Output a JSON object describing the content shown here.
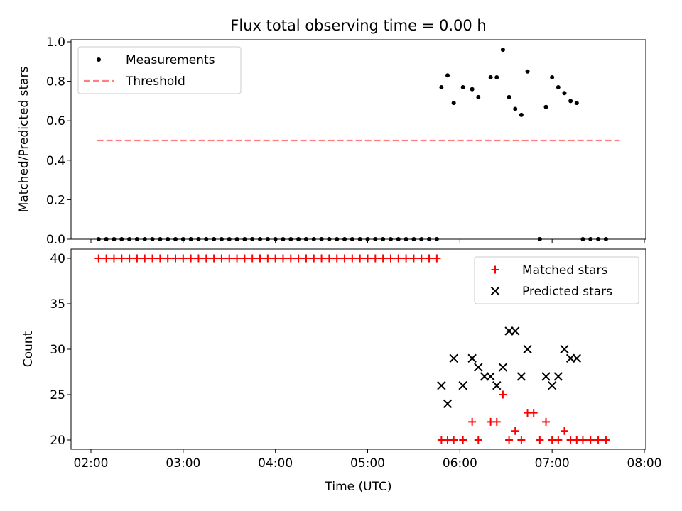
{
  "chart_data": [
    {
      "type": "scatter",
      "title": "Flux total observing time = 0.00 h",
      "xlabel": "",
      "ylabel": "Matched/Predicted stars",
      "xlim": [
        "02:00",
        "08:00"
      ],
      "ylim": [
        0,
        1.0
      ],
      "yticks": [
        0.0,
        0.2,
        0.4,
        0.6,
        0.8,
        1.0
      ],
      "ytick_labels": [
        "0.0",
        "0.2",
        "0.4",
        "0.6",
        "0.8",
        "1.0"
      ],
      "legend": {
        "placement": "top-left",
        "entries": [
          "Measurements",
          "Threshold"
        ]
      },
      "series": [
        {
          "name": "Measurements",
          "marker": "dot",
          "color": "#000000",
          "x": [
            "02:05",
            "02:10",
            "02:15",
            "02:20",
            "02:25",
            "02:30",
            "02:35",
            "02:40",
            "02:45",
            "02:50",
            "02:55",
            "03:00",
            "03:05",
            "03:10",
            "03:15",
            "03:20",
            "03:25",
            "03:30",
            "03:35",
            "03:40",
            "03:45",
            "03:50",
            "03:55",
            "04:00",
            "04:05",
            "04:10",
            "04:15",
            "04:20",
            "04:25",
            "04:30",
            "04:35",
            "04:40",
            "04:45",
            "04:50",
            "04:55",
            "05:00",
            "05:05",
            "05:10",
            "05:15",
            "05:20",
            "05:25",
            "05:30",
            "05:35",
            "05:40",
            "05:45",
            "05:48",
            "05:52",
            "05:56",
            "06:02",
            "06:08",
            "06:12",
            "06:20",
            "06:24",
            "06:28",
            "06:32",
            "06:36",
            "06:40",
            "06:44",
            "06:52",
            "06:56",
            "07:00",
            "07:04",
            "07:08",
            "07:12",
            "07:16",
            "07:20",
            "07:25",
            "07:30",
            "07:35"
          ],
          "y": [
            0,
            0,
            0,
            0,
            0,
            0,
            0,
            0,
            0,
            0,
            0,
            0,
            0,
            0,
            0,
            0,
            0,
            0,
            0,
            0,
            0,
            0,
            0,
            0,
            0,
            0,
            0,
            0,
            0,
            0,
            0,
            0,
            0,
            0,
            0,
            0,
            0,
            0,
            0,
            0,
            0,
            0,
            0,
            0,
            0,
            0.77,
            0.83,
            0.69,
            0.77,
            0.76,
            0.72,
            0.82,
            0.82,
            0.96,
            0.72,
            0.66,
            0.63,
            0.85,
            0,
            0.67,
            0.82,
            0.77,
            0.74,
            0.7,
            0.69,
            0,
            0,
            0,
            0
          ]
        },
        {
          "name": "Threshold",
          "style": "dashed",
          "color": "#ff7f7f",
          "x": [
            "02:04",
            "07:44"
          ],
          "y": [
            0.5,
            0.5
          ]
        }
      ]
    },
    {
      "type": "scatter",
      "title": "",
      "xlabel": "Time (UTC)",
      "ylabel": "Count",
      "xlim": [
        "02:00",
        "08:00"
      ],
      "xticks": [
        "02:00",
        "03:00",
        "04:00",
        "05:00",
        "06:00",
        "07:00",
        "08:00"
      ],
      "ylim": [
        20,
        40
      ],
      "yticks": [
        20,
        25,
        30,
        35,
        40
      ],
      "ytick_labels": [
        "20",
        "25",
        "30",
        "35",
        "40"
      ],
      "legend": {
        "placement": "top-right",
        "entries": [
          "Matched stars",
          "Predicted stars"
        ]
      },
      "series": [
        {
          "name": "Matched stars",
          "marker": "plus",
          "color": "#ff0000",
          "x": [
            "02:05",
            "02:10",
            "02:15",
            "02:20",
            "02:25",
            "02:30",
            "02:35",
            "02:40",
            "02:45",
            "02:50",
            "02:55",
            "03:00",
            "03:05",
            "03:10",
            "03:15",
            "03:20",
            "03:25",
            "03:30",
            "03:35",
            "03:40",
            "03:45",
            "03:50",
            "03:55",
            "04:00",
            "04:05",
            "04:10",
            "04:15",
            "04:20",
            "04:25",
            "04:30",
            "04:35",
            "04:40",
            "04:45",
            "04:50",
            "04:55",
            "05:00",
            "05:05",
            "05:10",
            "05:15",
            "05:20",
            "05:25",
            "05:30",
            "05:35",
            "05:40",
            "05:45",
            "05:48",
            "05:52",
            "05:56",
            "06:02",
            "06:08",
            "06:12",
            "06:20",
            "06:24",
            "06:28",
            "06:32",
            "06:36",
            "06:40",
            "06:44",
            "06:48",
            "06:52",
            "06:56",
            "07:00",
            "07:04",
            "07:08",
            "07:12",
            "07:16",
            "07:20",
            "07:25",
            "07:30",
            "07:35"
          ],
          "y": [
            40,
            40,
            40,
            40,
            40,
            40,
            40,
            40,
            40,
            40,
            40,
            40,
            40,
            40,
            40,
            40,
            40,
            40,
            40,
            40,
            40,
            40,
            40,
            40,
            40,
            40,
            40,
            40,
            40,
            40,
            40,
            40,
            40,
            40,
            40,
            40,
            40,
            40,
            40,
            40,
            40,
            40,
            40,
            40,
            40,
            20,
            20,
            20,
            20,
            22,
            20,
            22,
            22,
            25,
            20,
            21,
            20,
            23,
            23,
            20,
            22,
            20,
            20,
            21,
            20,
            20,
            20,
            20,
            20,
            20
          ]
        },
        {
          "name": "Predicted stars",
          "marker": "x",
          "color": "#000000",
          "x": [
            "05:48",
            "05:52",
            "05:56",
            "06:02",
            "06:08",
            "06:12",
            "06:16",
            "06:20",
            "06:24",
            "06:28",
            "06:32",
            "06:36",
            "06:40",
            "06:44",
            "06:56",
            "07:00",
            "07:04",
            "07:08",
            "07:12",
            "07:16"
          ],
          "y": [
            26,
            24,
            29,
            26,
            29,
            28,
            27,
            27,
            26,
            28,
            32,
            32,
            27,
            30,
            27,
            26,
            27,
            30,
            29,
            29
          ]
        }
      ]
    }
  ]
}
